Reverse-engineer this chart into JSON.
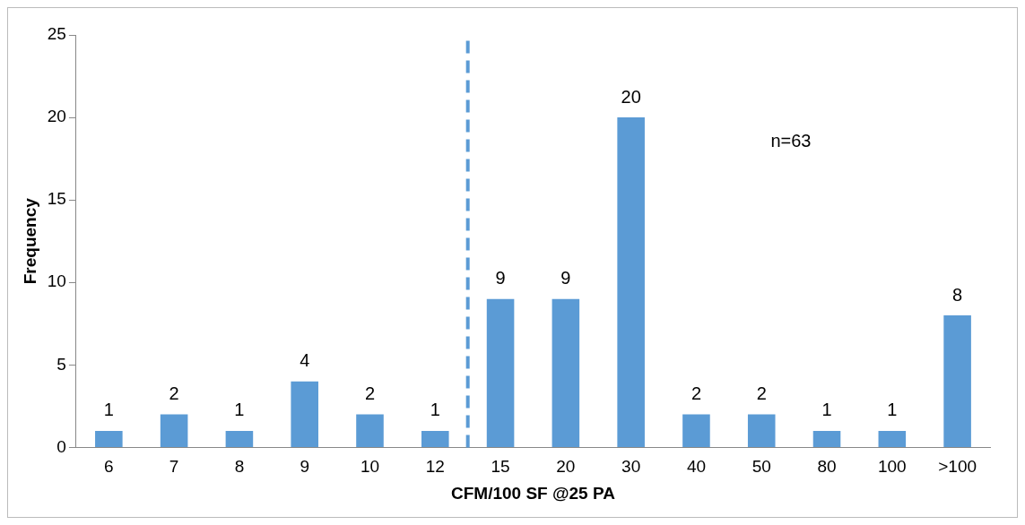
{
  "chart_data": {
    "type": "bar",
    "xlabel": "CFM/100 SF @25 PA",
    "ylabel": "Frequency",
    "categories": [
      "6",
      "7",
      "8",
      "9",
      "10",
      "12",
      "15",
      "20",
      "30",
      "40",
      "50",
      "80",
      "100",
      ">100"
    ],
    "values": [
      1,
      2,
      1,
      4,
      2,
      1,
      9,
      9,
      20,
      2,
      2,
      1,
      1,
      8
    ],
    "color": "#5b9bd5",
    "ylim": [
      0,
      25
    ],
    "yticks": [
      0,
      5,
      10,
      15,
      20,
      25
    ],
    "grid": false,
    "data_labels": true,
    "ref_lines": [
      {
        "axis": "x",
        "value": "12",
        "color": "#5b9bd5",
        "line_style": "dashed"
      }
    ],
    "annotations": [
      "n=63"
    ]
  }
}
